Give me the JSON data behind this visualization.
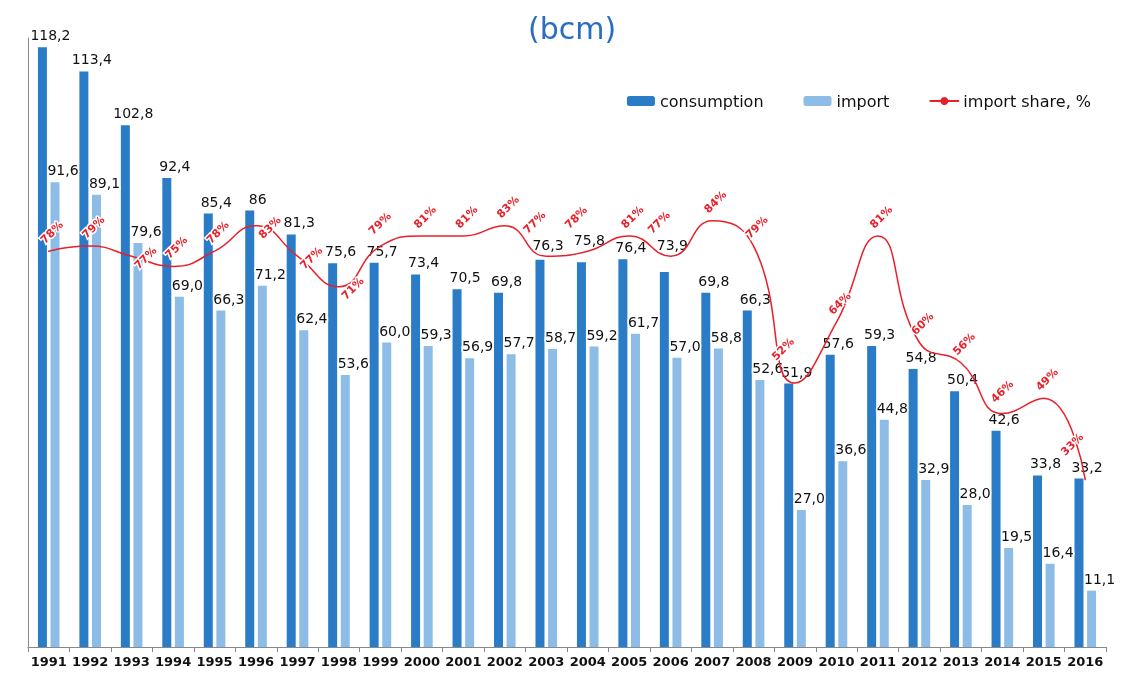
{
  "chart_data": {
    "type": "bar",
    "title": "(bcm)",
    "categories": [
      "1991",
      "1992",
      "1993",
      "1994",
      "1995",
      "1996",
      "1997",
      "1998",
      "1999",
      "2000",
      "2001",
      "2002",
      "2003",
      "2004",
      "2005",
      "2006",
      "2007",
      "2008",
      "2009",
      "2010",
      "2011",
      "2012",
      "2013",
      "2014",
      "2015",
      "2016"
    ],
    "series": [
      {
        "name": "consumption",
        "color": "#2a7cc6",
        "values": [
          118.2,
          113.4,
          102.8,
          92.4,
          85.4,
          86,
          81.3,
          75.6,
          75.7,
          73.4,
          70.5,
          69.8,
          76.3,
          75.8,
          76.4,
          73.9,
          69.8,
          66.3,
          51.9,
          57.6,
          59.3,
          54.8,
          50.4,
          42.6,
          33.8,
          33.2
        ],
        "value_labels": [
          "118,2",
          "113,4",
          "102,8",
          "92,4",
          "85,4",
          "86",
          "81,3",
          "75,6",
          "75,7",
          "73,4",
          "70,5",
          "69,8",
          "76,3",
          "75,8",
          "76,4",
          "73,9",
          "69,8",
          "66,3",
          "51,9",
          "57,6",
          "59,3",
          "54,8",
          "50,4",
          "42,6",
          "33,8",
          "33,2"
        ]
      },
      {
        "name": "import",
        "color": "#8dbde6",
        "values": [
          91.6,
          89.1,
          79.6,
          69.0,
          66.3,
          71.2,
          62.4,
          53.6,
          60.0,
          59.3,
          56.9,
          57.7,
          58.7,
          59.2,
          61.7,
          57.0,
          58.8,
          52.6,
          27.0,
          36.6,
          44.8,
          32.9,
          28.0,
          19.5,
          16.4,
          11.1
        ],
        "value_labels": [
          "91,6",
          "89,1",
          "79,6",
          "69,0",
          "66,3",
          "71,2",
          "62,4",
          "53,6",
          "60,0",
          "59,3",
          "56,9",
          "57,7",
          "58,7",
          "59,2",
          "61,7",
          "57,0",
          "58,8",
          "52,6",
          "27,0",
          "36,6",
          "44,8",
          "32,9",
          "28,0",
          "19,5",
          "16,4",
          "11,1"
        ]
      },
      {
        "name": "import share, %",
        "type": "line",
        "color": "#e8202a",
        "values": [
          78,
          79,
          77,
          75,
          78,
          83,
          77,
          71,
          79,
          81,
          81,
          83,
          77,
          78,
          81,
          77,
          84,
          79,
          52,
          64,
          81,
          60,
          56,
          46,
          49,
          33
        ],
        "value_labels": [
          "78%",
          "79%",
          "77%",
          "75%",
          "78%",
          "83%",
          "77%",
          "71%",
          "79%",
          "81%",
          "81%",
          "83%",
          "77%",
          "78%",
          "81%",
          "77%",
          "84%",
          "79%",
          "52%",
          "64%",
          "81%",
          "60%",
          "56%",
          "46%",
          "49%",
          "33%"
        ]
      }
    ],
    "legend": "top right",
    "grid": false,
    "tick_labels": "x",
    "marker": "none",
    "line_style": "solid"
  }
}
